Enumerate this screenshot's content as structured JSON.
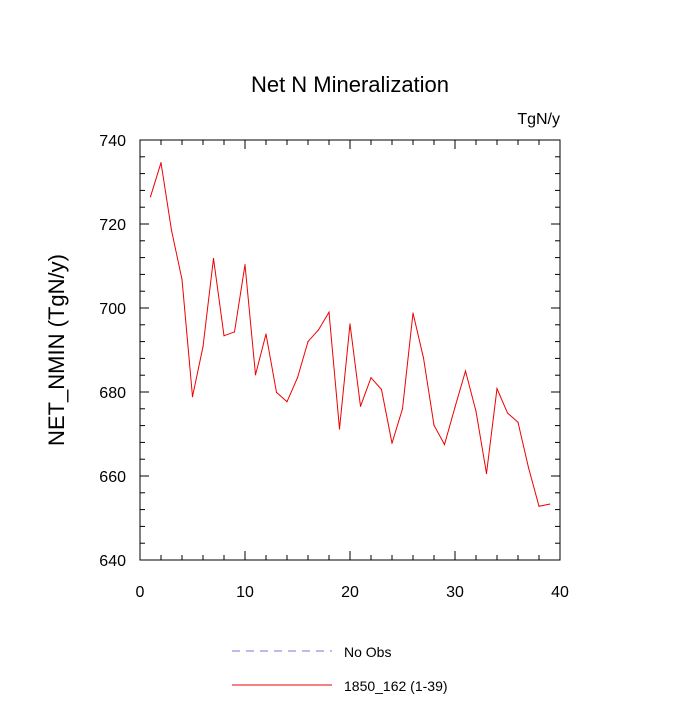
{
  "chart_data": {
    "type": "line",
    "title": "Net N Mineralization",
    "units_label": "TgN/y",
    "xlabel": "",
    "ylabel": "NET_NMIN  (TgN/y)",
    "xlim": [
      0,
      40
    ],
    "ylim": [
      640,
      740
    ],
    "x_ticks": [
      0,
      10,
      20,
      30,
      40
    ],
    "y_ticks": [
      640,
      660,
      680,
      700,
      720,
      740
    ],
    "x_tick_labels": [
      "0",
      "10",
      "20",
      "30",
      "40"
    ],
    "y_tick_labels": [
      "640",
      "660",
      "680",
      "700",
      "720",
      "740"
    ],
    "x_minor_step": 2,
    "y_minor_step": 4,
    "grid": false,
    "legend_position": "bottom",
    "series": [
      {
        "name": "No Obs",
        "color": "#7777dd",
        "dashed": true,
        "x": [],
        "values": []
      },
      {
        "name": "1850_162 (1-39)",
        "color": "#ee0000",
        "dashed": false,
        "x": [
          1,
          2,
          3,
          4,
          5,
          6,
          7,
          8,
          9,
          10,
          11,
          12,
          13,
          14,
          15,
          16,
          17,
          18,
          19,
          20,
          21,
          22,
          23,
          24,
          25,
          26,
          27,
          28,
          29,
          30,
          31,
          32,
          33,
          34,
          35,
          36,
          37,
          38,
          39
        ],
        "values": [
          726.5,
          734.6,
          718.5,
          706.8,
          678.9,
          690.8,
          711.8,
          693.4,
          694.3,
          710.3,
          684.1,
          693.8,
          679.9,
          677.7,
          683.4,
          692.0,
          694.8,
          699.0,
          671.2,
          696.2,
          676.6,
          683.4,
          680.6,
          667.8,
          676.0,
          698.8,
          688.1,
          672.1,
          667.5,
          676.4,
          685.0,
          675.4,
          660.6,
          680.8,
          675.0,
          672.8,
          662.0,
          652.8,
          653.3
        ]
      }
    ]
  }
}
